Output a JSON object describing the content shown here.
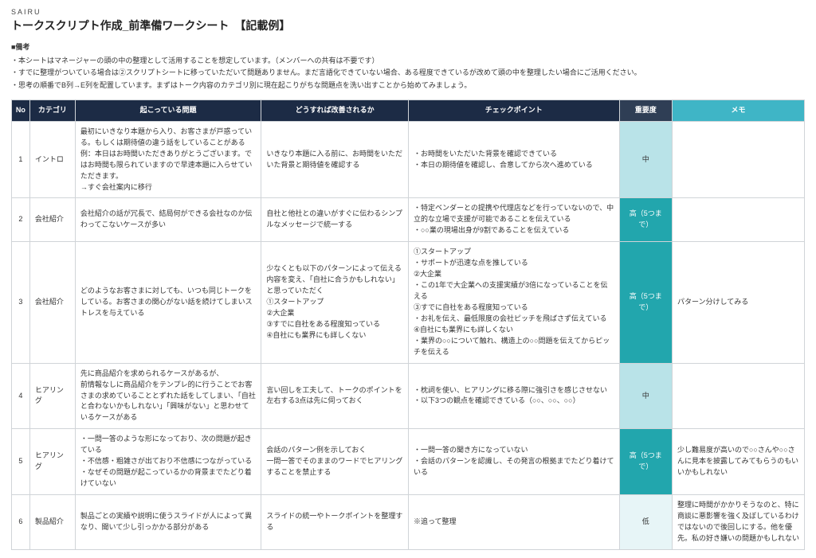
{
  "brand": "SAIRU",
  "title": "トークスクリプト作成_前準備ワークシート　【記載例】",
  "notes_heading": "■備考",
  "notes": [
    "本シートはマネージャーの頭の中の整理として活用することを想定しています。（メンバーへの共有は不要です）",
    "すでに整理がついている場合は②スクリプトシートに移っていただいて問題ありません。まだ言語化できていない場合、ある程度できているが改めて頭の中を整理したい場合にご活用ください。",
    "思考の順番でB列→E列を配置しています。まずはトーク内容のカテゴリ別に現在起こりがちな問題点を洗い出すことから始めてみましょう。"
  ],
  "columns": {
    "no": "No",
    "cat": "カテゴリ",
    "prob": "起こっている問題",
    "how": "どうすれば改善されるか",
    "chk": "チェックポイント",
    "imp": "重要度",
    "memo": "メモ"
  },
  "importance_colors": {
    "mid": "#b9e3e8",
    "high": "#22a6ad",
    "low": "#e7f5f7"
  },
  "rows": [
    {
      "no": "1",
      "cat": "イントロ",
      "prob": "最初にいきなり本題から入り、お客さまが戸惑っている。もしくは期待値の違う話をしていることがある\n例：本日はお時間いただきありがとうございます。ではお時間も限られていますので早速本題に入らせていただきます。\n→すぐ会社案内に移行",
      "how": "いきなり本題に入る前に、お時間をいただいた背景と期待値を確認する",
      "chk": "・お時間をいただいた背景を確認できている\n・本日の期待値を確認し、合意してから次へ進めている",
      "imp": "中",
      "imp_cls": "imp-mid",
      "memo": ""
    },
    {
      "no": "2",
      "cat": "会社紹介",
      "prob": "会社紹介の話が冗長で、結局何ができる会社なのか伝わってこないケースが多い",
      "how": "自社と他社との違いがすぐに伝わるシンプルなメッセージで統一する",
      "chk": "・特定ベンダーとの提携や代理店などを行っていないので、中立的な立場で支援が可能であることを伝えている\n・○○業の現場出身が9割であることを伝えている",
      "imp": "高（5つまで）",
      "imp_cls": "imp-high",
      "memo": ""
    },
    {
      "no": "3",
      "cat": "会社紹介",
      "prob": "どのようなお客さまに対しても、いつも同じトークをしている。お客さまの関心がない話を続けてしまいストレスを与えている",
      "how": "少なくとも以下のパターンによって伝える内容を変え、「自社に合うかもしれない」と思っていただく\n①スタートアップ\n②大企業\n③すでに自社をある程度知っている\n④自社にも業界にも詳しくない",
      "chk": "①スタートアップ\n・サポートが迅速な点を推している\n②大企業\n・この1年で大企業への支援実績が3倍になっていることを伝える\n③すでに自社をある程度知っている\n・お礼を伝え、最低限度の会社ピッチを飛ばさず伝えている\n④自社にも業界にも詳しくない\n・業界の○○について触れ、構造上の○○問題を伝えてからピッチを伝える",
      "imp": "高（5つまで）",
      "imp_cls": "imp-high",
      "memo": "パターン分けしてみる"
    },
    {
      "no": "4",
      "cat": "ヒアリング",
      "prob": "先に商品紹介を求められるケースがあるが、\n前情報なしに商品紹介をテンプレ的に行うことでお客さまの求めていることとずれた話をしてしまい、「自社と合わないかもしれない」「興味がない」と思わせているケースがある",
      "how": "言い回しを工夫して、トークのポイントを左右する3点は先に伺っておく",
      "chk": "・枕詞を使い、ヒアリングに移る際に強引さを感じさせない\n・以下3つの観点を確認できている（○○、○○、○○）",
      "imp": "中",
      "imp_cls": "imp-mid",
      "memo": ""
    },
    {
      "no": "5",
      "cat": "ヒアリング",
      "prob": "・一問一答のような形になっており、次の問題が起きている\n・不信感・粗雑さが出ており不信感につながっている\n・なぜその問題が起こっているかの背景までたどり着けていない",
      "how": "会話のパターン例を示しておく\n一問一答でそのままのワードでヒアリングすることを禁止する",
      "chk": "・一問一答の聞き方になっていない\n・会話のパターンを認識し、その発言の根拠までたどり着けている",
      "imp": "高（5つまで）",
      "imp_cls": "imp-high",
      "memo": "少し難易度が高いので○○さんや○○さんに見本を披露してみてもらうのもいいかもしれない"
    },
    {
      "no": "6",
      "cat": "製品紹介",
      "prob": "製品ごとの実績や説明に使うスライドが人によって異なり、聞いて少し引っかかる部分がある",
      "how": "スライドの統一やトークポイントを整理する",
      "chk": "※追って整理",
      "imp": "低",
      "imp_cls": "imp-low",
      "memo": "整理に時間がかかりそうなのと、特に商談に悪影響を強く及ぼしているわけではないので後回しにする。他を優先。私の好き嫌いの問題かもしれない"
    }
  ]
}
